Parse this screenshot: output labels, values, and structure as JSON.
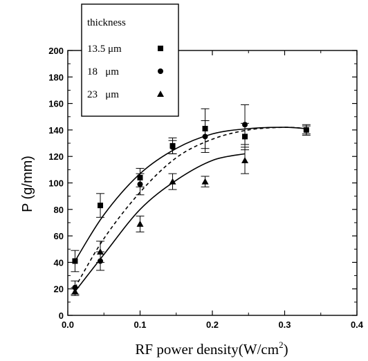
{
  "chart_data": {
    "type": "scatter",
    "xlabel": "RF power density(W/cm",
    "xlabel_sup": "2",
    "xlabel_end": ")",
    "ylabel": "P (g/mm)",
    "xlim": [
      0.0,
      0.4
    ],
    "ylim": [
      0,
      200
    ],
    "x_ticks": [
      "0.0",
      "0.1",
      "0.2",
      "0.3",
      "0.4"
    ],
    "y_ticks": [
      "0",
      "20",
      "40",
      "60",
      "80",
      "100",
      "120",
      "140",
      "160",
      "180",
      "200"
    ],
    "legend": {
      "title": "thickness",
      "placement": "top-left"
    },
    "series": [
      {
        "name": "13.5 μm",
        "marker": "square",
        "line": "solid",
        "x": [
          0.01,
          0.045,
          0.1,
          0.145,
          0.19,
          0.245,
          0.33
        ],
        "y": [
          41,
          83,
          104,
          128,
          141,
          135,
          140
        ],
        "err": [
          8,
          9,
          7,
          6,
          15,
          10,
          4
        ],
        "fit_x": [
          0.01,
          0.05,
          0.1,
          0.15,
          0.2,
          0.25,
          0.3,
          0.33
        ],
        "fit_y": [
          41,
          76,
          107,
          126,
          137,
          141,
          142,
          141
        ]
      },
      {
        "name": "18   μm",
        "marker": "circle",
        "line": "dashed",
        "x": [
          0.01,
          0.045,
          0.1,
          0.145,
          0.19,
          0.245,
          0.33
        ],
        "y": [
          21,
          41,
          99,
          127,
          135,
          144,
          140
        ],
        "err": [
          5,
          7,
          8,
          5,
          12,
          15,
          3
        ],
        "fit_x": [
          0.01,
          0.05,
          0.1,
          0.15,
          0.2,
          0.25,
          0.3,
          0.33
        ],
        "fit_y": [
          21,
          58,
          93,
          119,
          133,
          140,
          142,
          141
        ]
      },
      {
        "name": "23   μm",
        "marker": "triangle",
        "line": "solid",
        "x": [
          0.01,
          0.045,
          0.1,
          0.145,
          0.19,
          0.245
        ],
        "y": [
          18,
          48,
          69,
          101,
          101,
          117
        ],
        "err": [
          3,
          8,
          6,
          6,
          4,
          10
        ],
        "fit_x": [
          0.01,
          0.05,
          0.1,
          0.15,
          0.2,
          0.245
        ],
        "fit_y": [
          18,
          46,
          80,
          102,
          117,
          122
        ]
      }
    ]
  }
}
